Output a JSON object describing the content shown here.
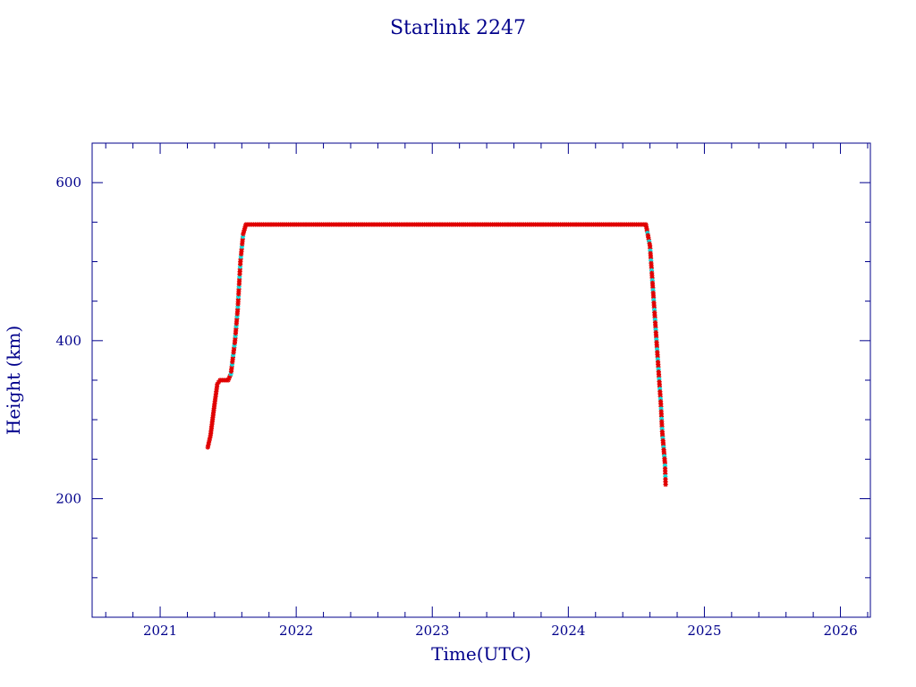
{
  "chart_data": {
    "type": "scatter",
    "title": "Starlink 2247",
    "xlabel": "Time(UTC)",
    "ylabel": "Height (km)",
    "xlim": [
      2020.5,
      2026.22
    ],
    "ylim": [
      50,
      650
    ],
    "x_ticks": [
      2021,
      2022,
      2023,
      2024,
      2025,
      2026
    ],
    "y_ticks": [
      200,
      400,
      600
    ],
    "grid": false,
    "legend": "none",
    "colors": {
      "axes": "#00008b",
      "primary_points": "#e00000",
      "secondary_points": "#00e5e5",
      "line": "#000000"
    },
    "series": [
      {
        "values": [
          [
            2021.35,
            265
          ],
          [
            2021.37,
            280
          ],
          [
            2021.4,
            320
          ],
          [
            2021.42,
            345
          ],
          [
            2021.44,
            350
          ],
          [
            2021.5,
            350
          ],
          [
            2021.52,
            358
          ],
          [
            2021.55,
            400
          ],
          [
            2021.57,
            440
          ],
          [
            2021.59,
            500
          ],
          [
            2021.61,
            535
          ],
          [
            2021.63,
            547
          ],
          [
            2022.0,
            547
          ],
          [
            2022.5,
            547
          ],
          [
            2023.0,
            547
          ],
          [
            2023.5,
            547
          ],
          [
            2024.0,
            547
          ],
          [
            2024.5,
            547
          ],
          [
            2024.57,
            547
          ],
          [
            2024.6,
            520
          ],
          [
            2024.62,
            470
          ],
          [
            2024.64,
            420
          ],
          [
            2024.66,
            370
          ],
          [
            2024.68,
            320
          ],
          [
            2024.69,
            285
          ],
          [
            2024.7,
            265
          ],
          [
            2024.71,
            245
          ],
          [
            2024.715,
            218
          ]
        ]
      }
    ]
  }
}
